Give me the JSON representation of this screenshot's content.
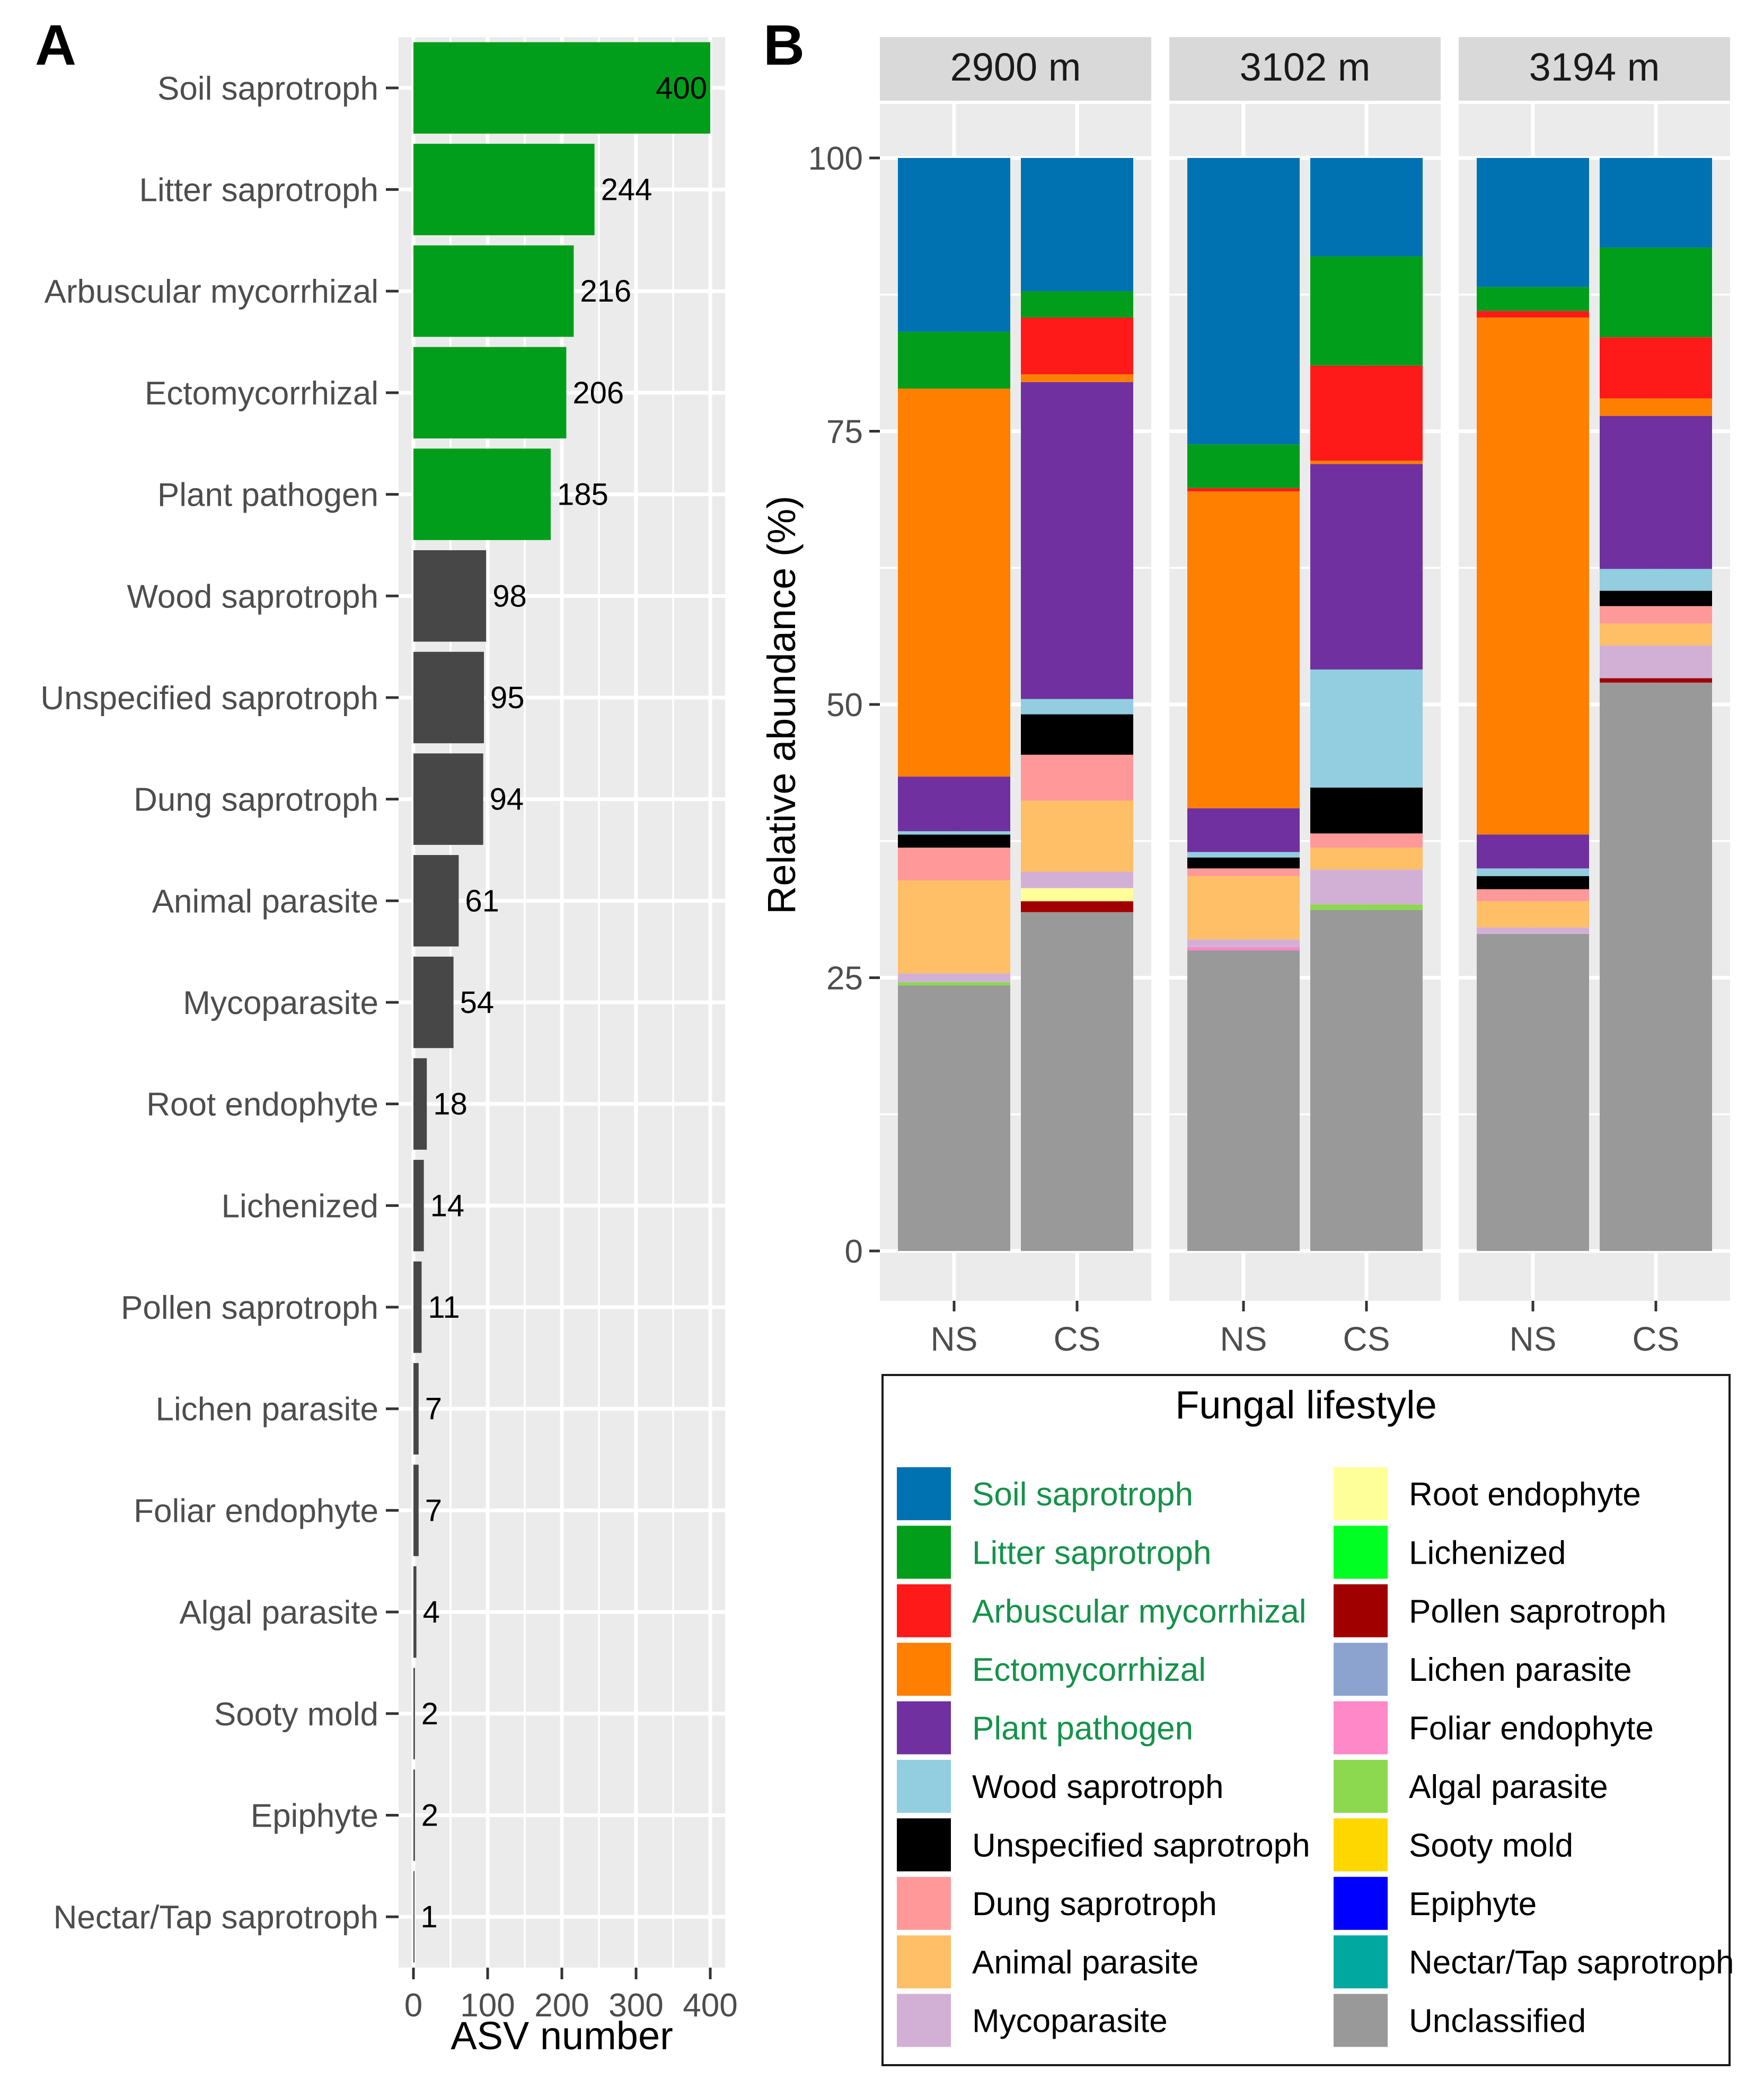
{
  "panel_labels": {
    "a": "A",
    "b": "B"
  },
  "colors": {
    "Soil saprotroph": "#0072B2",
    "Litter saprotroph": "#009E1A",
    "Arbuscular mycorrhizal": "#FF1A1A",
    "Ectomycorrhizal": "#FF7F00",
    "Plant pathogen": "#7030A0",
    "Wood saprotroph": "#92CDE0",
    "Unspecified saprotroph": "#000000",
    "Dung saprotroph": "#FF9999",
    "Animal parasite": "#FFBF66",
    "Mycoparasite": "#D2B0D6",
    "Root endophyte": "#FFFF99",
    "Lichenized": "#00FF22",
    "Pollen saprotroph": "#A00000",
    "Lichen parasite": "#8CA3CF",
    "Foliar endophyte": "#FF88C8",
    "Algal parasite": "#8CD94F",
    "Sooty mold": "#FFD700",
    "Epiphyte": "#0000FF",
    "Nectar/Tap saprotroph": "#00A8A0",
    "Unclassified": "#999999",
    "bar_highlight": "#009E1A",
    "bar_other": "#474747",
    "panel_bg": "#EBEBEB",
    "strip_bg": "#D9D9D9",
    "legend_green_text": "#15924A"
  },
  "chart_data": [
    {
      "type": "bar",
      "orientation": "horizontal",
      "panel": "A",
      "xlabel": "ASV number",
      "ylabel": "",
      "xlim": [
        0,
        420
      ],
      "xticks": [
        "0",
        "100",
        "200",
        "300",
        "400"
      ],
      "grid": true,
      "categories": [
        "Soil saprotroph",
        "Litter saprotroph",
        "Arbuscular mycorrhizal",
        "Ectomycorrhizal",
        "Plant pathogen",
        "Wood saprotroph",
        "Unspecified saprotroph",
        "Dung saprotroph",
        "Animal parasite",
        "Mycoparasite",
        "Root endophyte",
        "Lichenized",
        "Pollen saprotroph",
        "Lichen parasite",
        "Foliar endophyte",
        "Algal parasite",
        "Sooty mold",
        "Epiphyte",
        "Nectar/Tap saprotroph"
      ],
      "values": [
        400,
        244,
        216,
        206,
        185,
        98,
        95,
        94,
        61,
        54,
        18,
        14,
        11,
        7,
        7,
        4,
        2,
        2,
        1
      ],
      "highlighted": [
        true,
        true,
        true,
        true,
        true,
        false,
        false,
        false,
        false,
        false,
        false,
        false,
        false,
        false,
        false,
        false,
        false,
        false,
        false
      ]
    },
    {
      "type": "bar",
      "stacked": true,
      "panel": "B",
      "ylabel": "Relative abundance (%)",
      "xlabel": "",
      "ylim": [
        0,
        100
      ],
      "yticks": [
        "0",
        "25",
        "50",
        "75",
        "100"
      ],
      "grid": true,
      "facets": [
        "2900 m",
        "3102 m",
        "3194 m"
      ],
      "categories": [
        "NS",
        "CS"
      ],
      "legend_title": "Fungal lifestyle",
      "legend_position": "bottom",
      "legend_left": [
        "Soil saprotroph",
        "Litter saprotroph",
        "Arbuscular mycorrhizal",
        "Ectomycorrhizal",
        "Plant pathogen",
        "Wood saprotroph",
        "Unspecified saprotroph",
        "Dung saprotroph",
        "Animal parasite",
        "Mycoparasite"
      ],
      "legend_right": [
        "Root endophyte",
        "Lichenized",
        "Pollen saprotroph",
        "Lichen parasite",
        "Foliar endophyte",
        "Algal parasite",
        "Sooty mold",
        "Epiphyte",
        "Nectar/Tap saprotroph",
        "Unclassified"
      ],
      "legend_green": [
        "Soil saprotroph",
        "Litter saprotroph",
        "Arbuscular mycorrhizal",
        "Ectomycorrhizal",
        "Plant pathogen"
      ],
      "stack_order": [
        "Unclassified",
        "Nectar/Tap saprotroph",
        "Epiphyte",
        "Sooty mold",
        "Algal parasite",
        "Foliar endophyte",
        "Lichen parasite",
        "Pollen saprotroph",
        "Lichenized",
        "Root endophyte",
        "Mycoparasite",
        "Animal parasite",
        "Dung saprotroph",
        "Unspecified saprotroph",
        "Wood saprotroph",
        "Plant pathogen",
        "Ectomycorrhizal",
        "Arbuscular mycorrhizal",
        "Litter saprotroph",
        "Soil saprotroph"
      ],
      "bars": [
        {
          "facet": "2900 m",
          "group": "NS",
          "values": {
            "Unclassified": 24.3,
            "Algal parasite": 0.3,
            "Mycoparasite": 0.8,
            "Animal parasite": 8.5,
            "Dung saprotroph": 3.0,
            "Unspecified saprotroph": 1.2,
            "Wood saprotroph": 0.3,
            "Plant pathogen": 5.0,
            "Ectomycorrhizal": 35.5,
            "Litter saprotroph": 5.2,
            "Soil saprotroph": 15.9
          }
        },
        {
          "facet": "2900 m",
          "group": "CS",
          "values": {
            "Unclassified": 31.0,
            "Pollen saprotroph": 1.0,
            "Root endophyte": 1.2,
            "Mycoparasite": 1.5,
            "Animal parasite": 6.5,
            "Dung saprotroph": 4.2,
            "Unspecified saprotroph": 3.7,
            "Wood saprotroph": 1.4,
            "Plant pathogen": 29.0,
            "Ectomycorrhizal": 0.7,
            "Arbuscular mycorrhizal": 5.2,
            "Litter saprotroph": 2.4,
            "Soil saprotroph": 12.2
          }
        },
        {
          "facet": "3102 m",
          "group": "NS",
          "values": {
            "Unclassified": 27.5,
            "Foliar endophyte": 0.3,
            "Mycoparasite": 0.7,
            "Animal parasite": 5.8,
            "Dung saprotroph": 0.7,
            "Unspecified saprotroph": 1.0,
            "Wood saprotroph": 0.5,
            "Plant pathogen": 4.0,
            "Ectomycorrhizal": 29.0,
            "Arbuscular mycorrhizal": 0.3,
            "Litter saprotroph": 4.0,
            "Soil saprotroph": 26.2
          }
        },
        {
          "facet": "3102 m",
          "group": "CS",
          "values": {
            "Unclassified": 31.2,
            "Algal parasite": 0.5,
            "Mycoparasite": 3.2,
            "Animal parasite": 2.0,
            "Dung saprotroph": 1.3,
            "Unspecified saprotroph": 4.2,
            "Wood saprotroph": 10.8,
            "Plant pathogen": 18.8,
            "Ectomycorrhizal": 0.3,
            "Arbuscular mycorrhizal": 8.7,
            "Litter saprotroph": 10.0,
            "Soil saprotroph": 9.0
          }
        },
        {
          "facet": "3194 m",
          "group": "NS",
          "values": {
            "Unclassified": 29.0,
            "Mycoparasite": 0.6,
            "Animal parasite": 2.4,
            "Dung saprotroph": 1.1,
            "Unspecified saprotroph": 1.2,
            "Wood saprotroph": 0.7,
            "Plant pathogen": 3.1,
            "Ectomycorrhizal": 47.3,
            "Arbuscular mycorrhizal": 0.6,
            "Litter saprotroph": 2.2,
            "Soil saprotroph": 11.8
          }
        },
        {
          "facet": "3194 m",
          "group": "CS",
          "values": {
            "Unclassified": 52.0,
            "Pollen saprotroph": 0.4,
            "Mycoparasite": 3.0,
            "Animal parasite": 2.0,
            "Dung saprotroph": 1.6,
            "Unspecified saprotroph": 1.4,
            "Wood saprotroph": 2.0,
            "Plant pathogen": 14.0,
            "Ectomycorrhizal": 1.6,
            "Arbuscular mycorrhizal": 5.6,
            "Litter saprotroph": 8.2,
            "Soil saprotroph": 8.2
          }
        }
      ]
    }
  ]
}
